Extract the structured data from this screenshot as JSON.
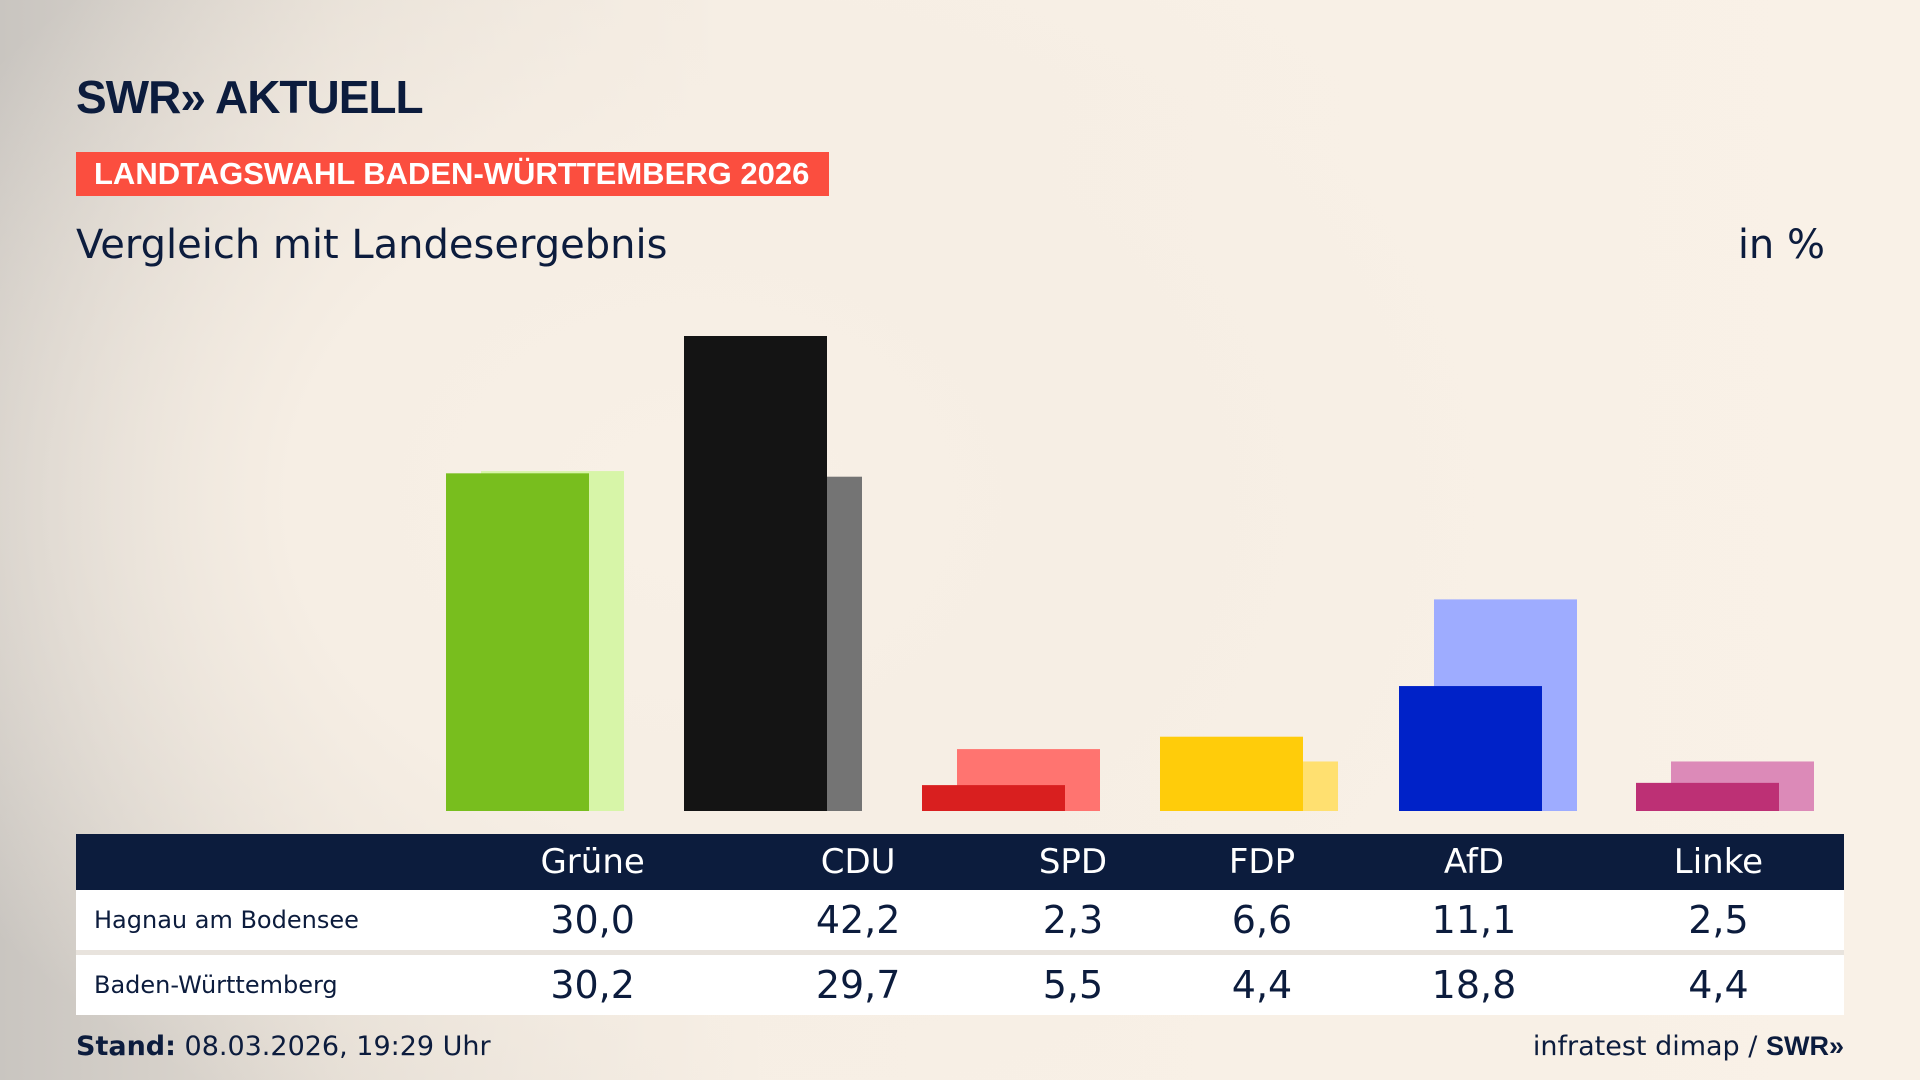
{
  "header": {
    "logo": "SWR» AKTUELL",
    "banner": "LANDTAGSWAHL BADEN-WÜRTTEMBERG 2026",
    "subtitle": "Vergleich mit Landesergebnis",
    "unit": "in %"
  },
  "chart_data": {
    "type": "bar",
    "categories": [
      "Grüne",
      "CDU",
      "SPD",
      "FDP",
      "AfD",
      "Linke"
    ],
    "series": [
      {
        "name": "Hagnau am Bodensee",
        "values": [
          30.0,
          42.2,
          2.3,
          6.6,
          11.1,
          2.5
        ]
      },
      {
        "name": "Baden-Württemberg",
        "values": [
          30.2,
          29.7,
          5.5,
          4.4,
          18.8,
          4.4
        ]
      }
    ],
    "colors": {
      "main": [
        "#78be1e",
        "#141414",
        "#d91f1f",
        "#ffcc0a",
        "#0022c8",
        "#bd3075"
      ],
      "comparison": [
        "#d7f5a8",
        "#747474",
        "#ff7470",
        "#ffe070",
        "#9eacff",
        "#dc8ab8"
      ]
    },
    "ylim": [
      0,
      42.2
    ],
    "grid": false
  },
  "table": {
    "headers": [
      "",
      "Grüne",
      "CDU",
      "SPD",
      "FDP",
      "AfD",
      "Linke"
    ],
    "rows": [
      {
        "label": "Hagnau am Bodensee",
        "values": [
          "30,0",
          "42,2",
          "2,3",
          "6,6",
          "11,1",
          "2,5"
        ]
      },
      {
        "label": "Baden-Württemberg",
        "values": [
          "30,2",
          "29,7",
          "5,5",
          "4,4",
          "18,8",
          "4,4"
        ]
      }
    ]
  },
  "footer": {
    "stand_label": "Stand:",
    "stand_value": "08.03.2026, 19:29 Uhr",
    "source": "infratest dimap /",
    "source_logo": "SWR»"
  }
}
